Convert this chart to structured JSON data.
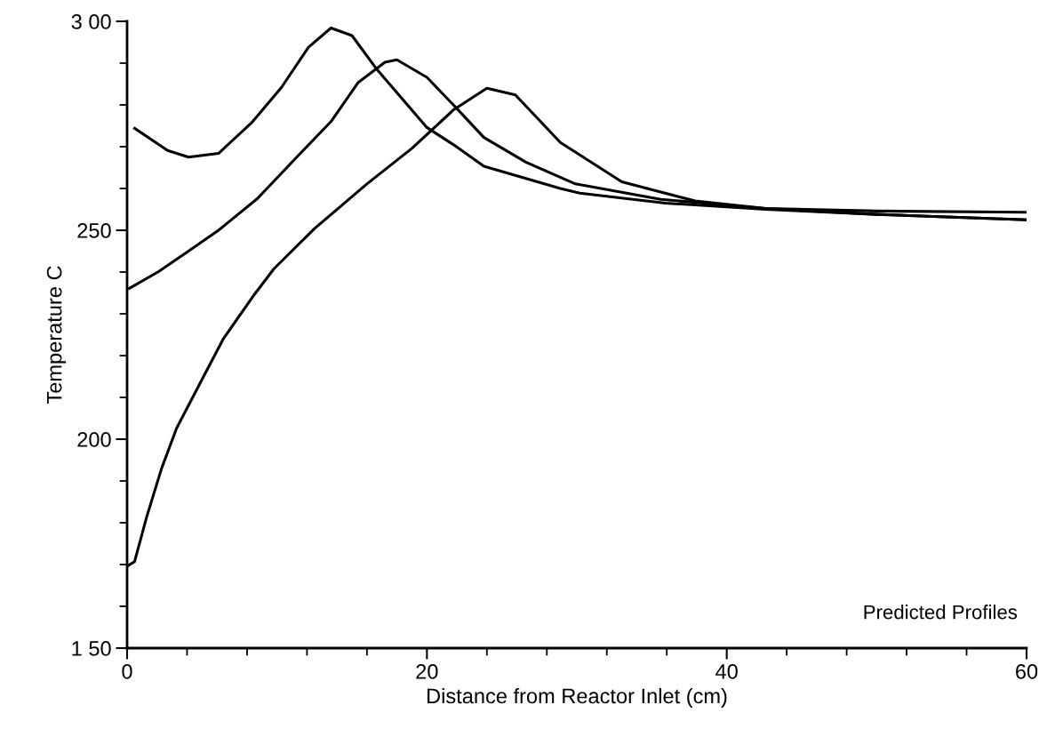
{
  "chart_data": {
    "type": "line",
    "xlabel": "Distance from Reactor Inlet (cm)",
    "ylabel": "Temperature C",
    "annotations": [
      "Predicted Profiles"
    ],
    "xlim": [
      0,
      60
    ],
    "ylim": [
      150,
      300
    ],
    "xticks": [
      0,
      20,
      40,
      60
    ],
    "yticks": [
      {
        "value": 150,
        "label": "1 50"
      },
      200,
      250,
      {
        "value": 300,
        "label": "3 00"
      }
    ],
    "grid": false,
    "marker": "none",
    "line_style": "solid",
    "series": [
      {
        "color": "#000000",
        "x": [
          0.5,
          2.7,
          4.1,
          6.1,
          8.3,
          10.3,
          12.1,
          13.6,
          15.0,
          16.6,
          20.0,
          21.8,
          23.8,
          28.9,
          30.2,
          35.9,
          42.6,
          50,
          60
        ],
        "values": [
          274.4,
          269.1,
          267.5,
          268.4,
          275.7,
          284.2,
          293.8,
          298.4,
          296.6,
          288.8,
          274.6,
          270.4,
          265.3,
          260.0,
          258.9,
          256.5,
          255.0,
          253.8,
          252.5
        ]
      },
      {
        "color": "#000000",
        "x": [
          0.15,
          2.1,
          3.9,
          6.1,
          8.7,
          11.5,
          13.6,
          15.4,
          17.2,
          18.0,
          20.0,
          21.9,
          23.8,
          26.6,
          29.9,
          35.6,
          42.6,
          50,
          60
        ],
        "values": [
          236.1,
          240.1,
          244.5,
          250.0,
          257.6,
          268.2,
          276.0,
          285.3,
          290.2,
          290.8,
          286.6,
          279.5,
          272.2,
          266.3,
          261.1,
          257.4,
          255.2,
          253.8,
          252.5
        ]
      },
      {
        "color": "#000000",
        "x": [
          0,
          0.5,
          1.3,
          2.3,
          3.3,
          5.0,
          6.4,
          8.4,
          9.8,
          12.5,
          16.0,
          19.0,
          21.8,
          24.0,
          25.9,
          28.9,
          33.0,
          37.9,
          42.6,
          50,
          60
        ],
        "values": [
          169.6,
          170.7,
          181.3,
          193.0,
          202.6,
          214.3,
          223.9,
          234.2,
          240.8,
          250.4,
          261.1,
          269.6,
          278.9,
          284.0,
          282.4,
          271.0,
          261.6,
          257.0,
          255.2,
          254.6,
          254.3
        ]
      }
    ]
  }
}
